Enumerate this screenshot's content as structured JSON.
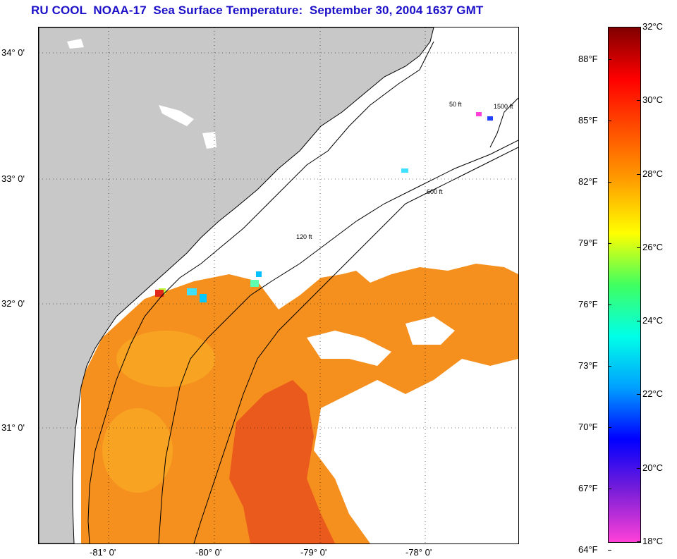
{
  "title": "RU COOL  NOAA-17  Sea Surface Temperature:  September 30, 2004 1637 GMT",
  "map": {
    "lat_labels": [
      {
        "text": "34° 0'",
        "value": 34
      },
      {
        "text": "33° 0'",
        "value": 33
      },
      {
        "text": "32° 0'",
        "value": 32
      },
      {
        "text": "31° 0'",
        "value": 31
      }
    ],
    "lon_labels": [
      {
        "text": "-81° 0'",
        "value": -81
      },
      {
        "text": "-80° 0'",
        "value": -80
      },
      {
        "text": "-79° 0'",
        "value": -79
      },
      {
        "text": "-78° 0'",
        "value": -78
      }
    ],
    "isobath_labels": [
      "50 ft",
      "120 ft",
      "600 ft",
      "1500 ft"
    ],
    "colors": {
      "land": "#c8c8c8",
      "cloud": "#ffffff",
      "warm_water": "#f07a1e",
      "coastline": "#000000"
    }
  },
  "colorbar": {
    "celsius": [
      {
        "text": "32°C",
        "value": 32
      },
      {
        "text": "30°C",
        "value": 30
      },
      {
        "text": "28°C",
        "value": 28
      },
      {
        "text": "26°C",
        "value": 26
      },
      {
        "text": "24°C",
        "value": 24
      },
      {
        "text": "22°C",
        "value": 22
      },
      {
        "text": "20°C",
        "value": 20
      },
      {
        "text": "18°C",
        "value": 18
      }
    ],
    "fahrenheit": [
      {
        "text": "88°F",
        "value": 88
      },
      {
        "text": "85°F",
        "value": 85
      },
      {
        "text": "82°F",
        "value": 82
      },
      {
        "text": "79°F",
        "value": 79
      },
      {
        "text": "76°F",
        "value": 76
      },
      {
        "text": "73°F",
        "value": 73
      },
      {
        "text": "70°F",
        "value": 70
      },
      {
        "text": "67°F",
        "value": 67
      },
      {
        "text": "64°F",
        "value": 64
      }
    ],
    "range_c": [
      18,
      32
    ],
    "stops": [
      "#ff40d8",
      "#7a1ed8",
      "#0000ff",
      "#00a0ff",
      "#00ffe8",
      "#40ff60",
      "#ffff00",
      "#ffa000",
      "#ff5000",
      "#ff0000",
      "#800000"
    ]
  }
}
